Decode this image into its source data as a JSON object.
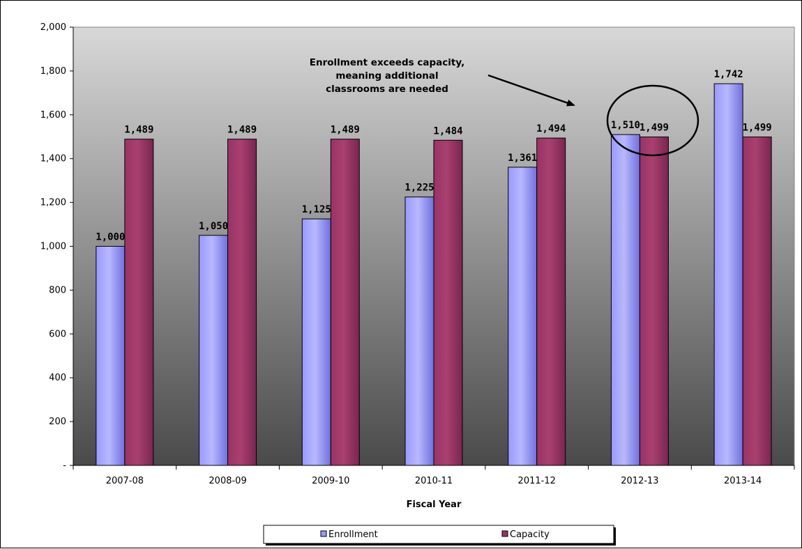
{
  "chart_data": {
    "type": "bar",
    "title": "",
    "xlabel": "Fiscal Year",
    "ylabel": "",
    "categories": [
      "2007-08",
      "2008-09",
      "2009-10",
      "2010-11",
      "2011-12",
      "2012-13",
      "2013-14"
    ],
    "series": [
      {
        "name": "Enrollment",
        "values": [
          1000,
          1050,
          1125,
          1225,
          1361,
          1510,
          1742
        ],
        "color": "#9999ff"
      },
      {
        "name": "Capacity",
        "values": [
          1489,
          1489,
          1489,
          1484,
          1494,
          1499,
          1499
        ],
        "color": "#993366"
      }
    ],
    "data_labels": {
      "Enrollment": [
        "1,000",
        "1,050",
        "1,125",
        "1,225",
        "1,361",
        "1,510",
        "1,742"
      ],
      "Capacity": [
        "1,489",
        "1,489",
        "1,489",
        "1,484",
        "1,494",
        "1,499",
        "1,499"
      ]
    },
    "ylim": [
      0,
      2000
    ],
    "yticks": [
      0,
      200,
      400,
      600,
      800,
      1000,
      1200,
      1400,
      1600,
      1800,
      2000
    ],
    "ytick_labels": [
      "-",
      "200",
      "400",
      "600",
      "800",
      "1,000",
      "1,200",
      "1,400",
      "1,600",
      "1,800",
      "2,000"
    ],
    "grid": false,
    "legend": {
      "position": "bottom",
      "entries": [
        "Enrollment",
        "Capacity"
      ]
    },
    "annotation": {
      "lines": [
        "Enrollment exceeds capacity,",
        "meaning additional",
        "classrooms are needed"
      ],
      "target_category": "2012-13"
    },
    "plot_background": {
      "top": "#d8d8d8",
      "bottom": "#4a4a4a"
    }
  }
}
